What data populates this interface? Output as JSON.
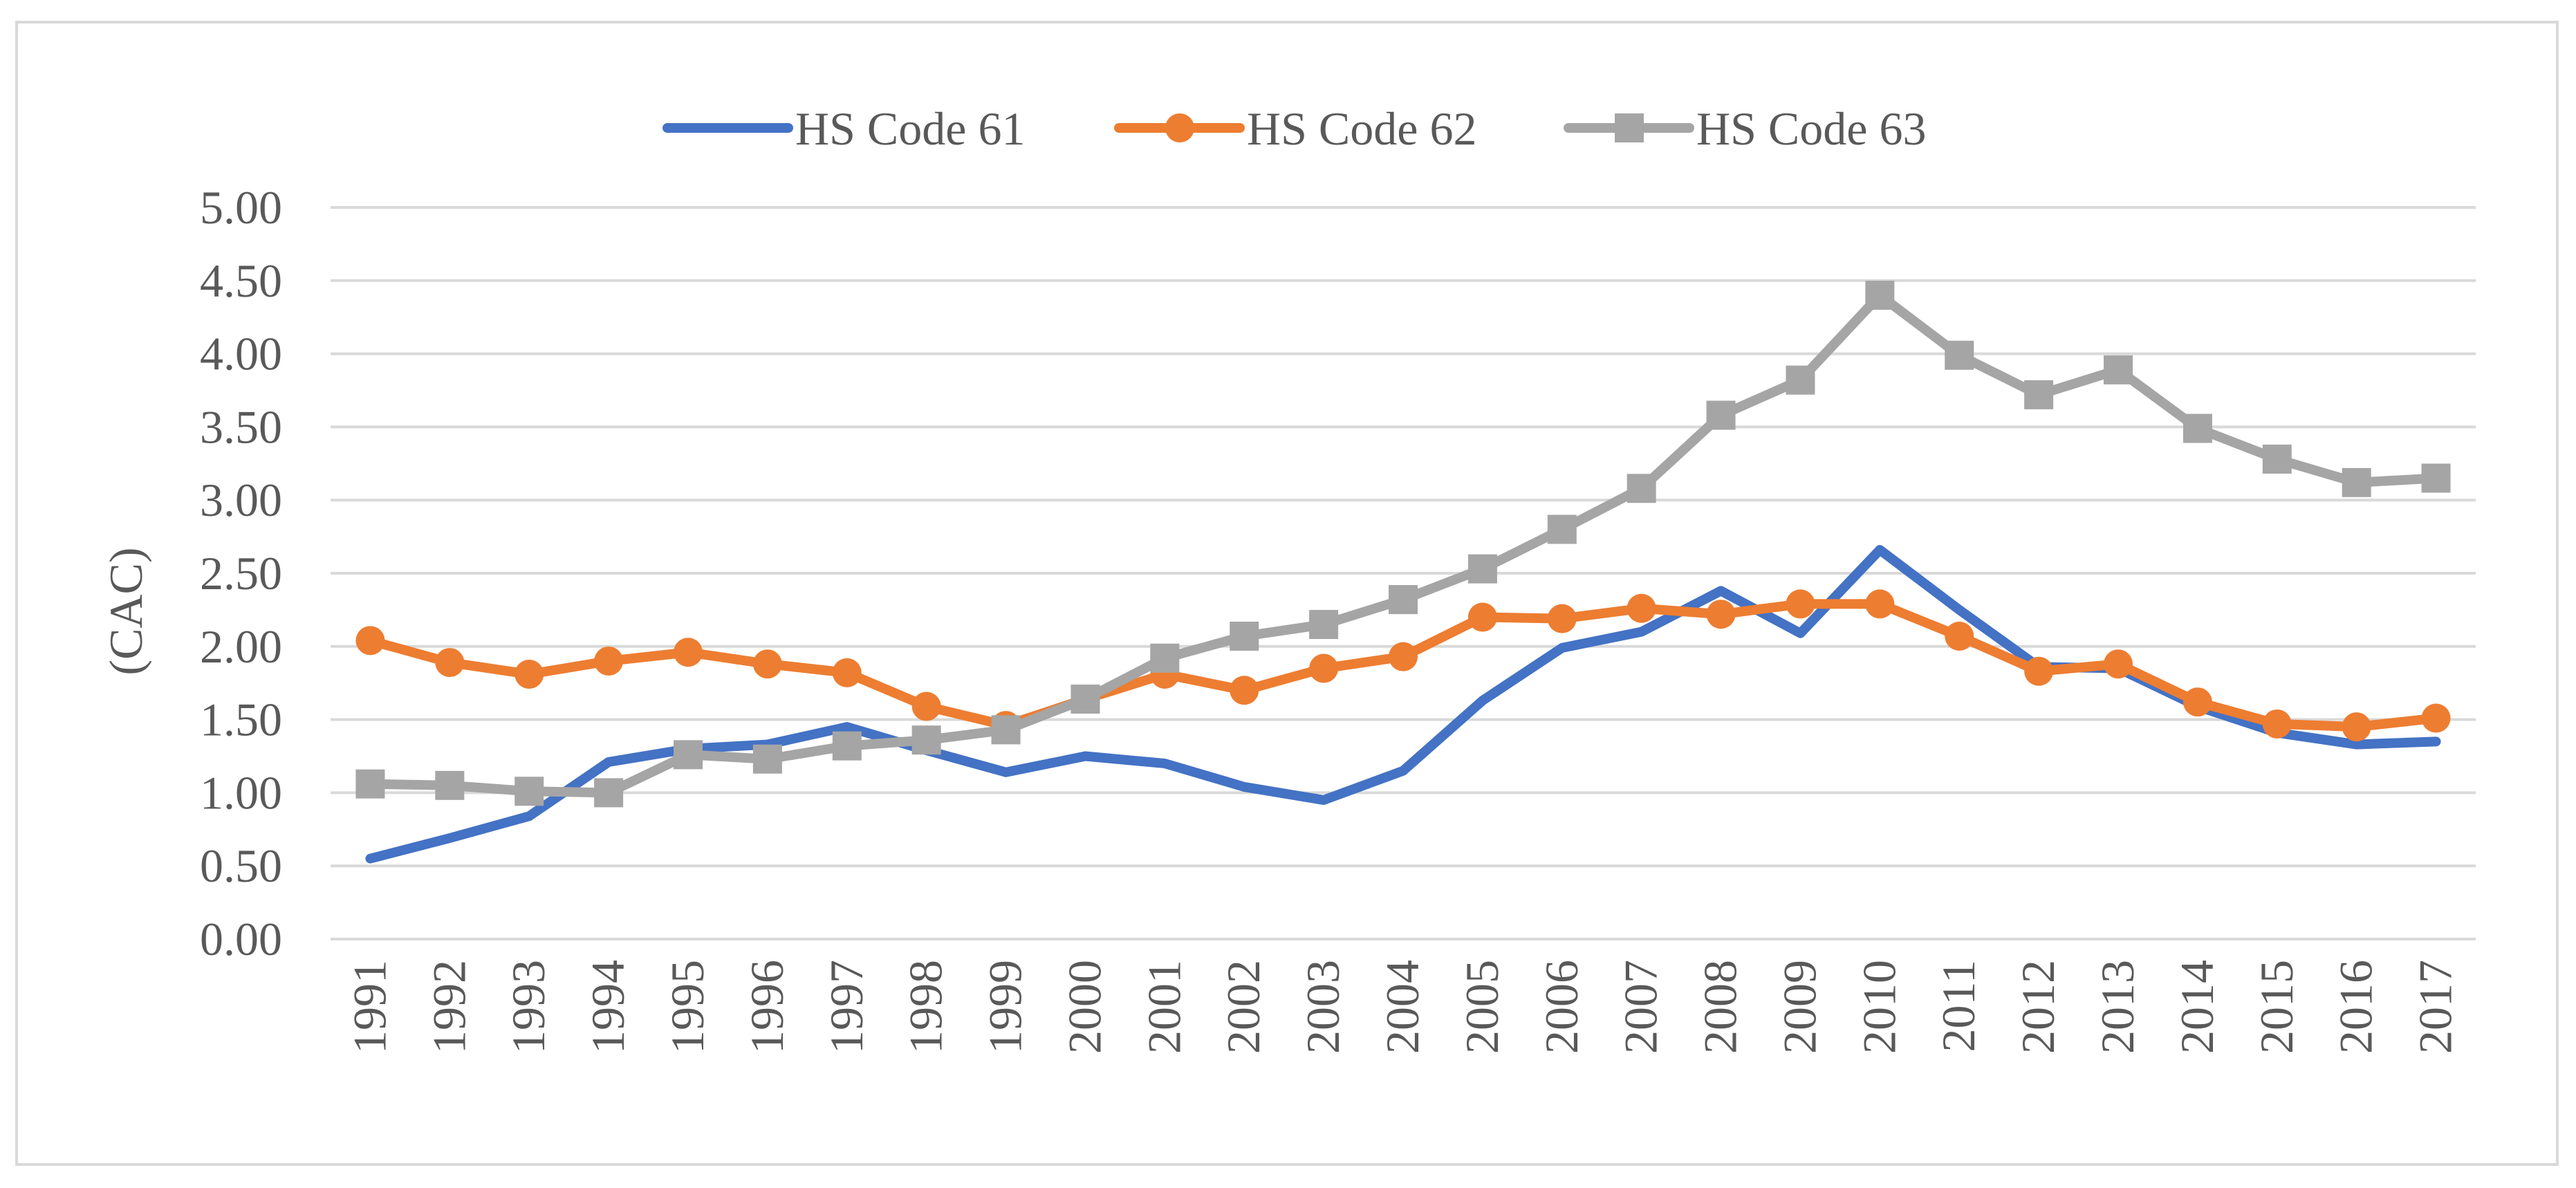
{
  "chart_data": {
    "type": "line",
    "title": "",
    "xlabel": "",
    "ylabel": "(CAC)",
    "ylim": [
      0,
      5
    ],
    "yticks": [
      "0.00",
      "0.50",
      "1.00",
      "1.50",
      "2.00",
      "2.50",
      "3.00",
      "3.50",
      "4.00",
      "4.50",
      "5.00"
    ],
    "grid": "horizontal",
    "legend_position": "top-center",
    "categories": [
      "1991",
      "1992",
      "1993",
      "1994",
      "1995",
      "1996",
      "1997",
      "1998",
      "1999",
      "2000",
      "2001",
      "2002",
      "2003",
      "2004",
      "2005",
      "2006",
      "2007",
      "2008",
      "2009",
      "2010",
      "2011",
      "2012",
      "2013",
      "2014",
      "2015",
      "2016",
      "2017"
    ],
    "series": [
      {
        "name": "HS Code 61",
        "color": "#4472c4",
        "marker": "none",
        "values": [
          0.55,
          0.69,
          0.84,
          1.21,
          1.3,
          1.33,
          1.45,
          1.29,
          1.14,
          1.25,
          1.2,
          1.04,
          0.95,
          1.15,
          1.63,
          1.99,
          2.1,
          2.38,
          2.09,
          2.66,
          2.25,
          1.86,
          1.85,
          1.59,
          1.41,
          1.33,
          1.35
        ]
      },
      {
        "name": "HS Code 62",
        "color": "#ed7d31",
        "marker": "circle",
        "values": [
          2.04,
          1.89,
          1.81,
          1.9,
          1.96,
          1.88,
          1.82,
          1.59,
          1.46,
          1.64,
          1.81,
          1.7,
          1.85,
          1.93,
          2.2,
          2.19,
          2.26,
          2.22,
          2.29,
          2.29,
          2.07,
          1.83,
          1.88,
          1.62,
          1.47,
          1.45,
          1.51
        ]
      },
      {
        "name": "HS Code 63",
        "color": "#a5a5a5",
        "marker": "square",
        "values": [
          1.06,
          1.05,
          1.01,
          1.0,
          1.26,
          1.23,
          1.32,
          1.36,
          1.43,
          1.64,
          1.92,
          2.07,
          2.15,
          2.32,
          2.53,
          2.8,
          3.08,
          3.58,
          3.82,
          4.4,
          3.99,
          3.72,
          3.89,
          3.49,
          3.28,
          3.12,
          3.15
        ]
      }
    ]
  }
}
